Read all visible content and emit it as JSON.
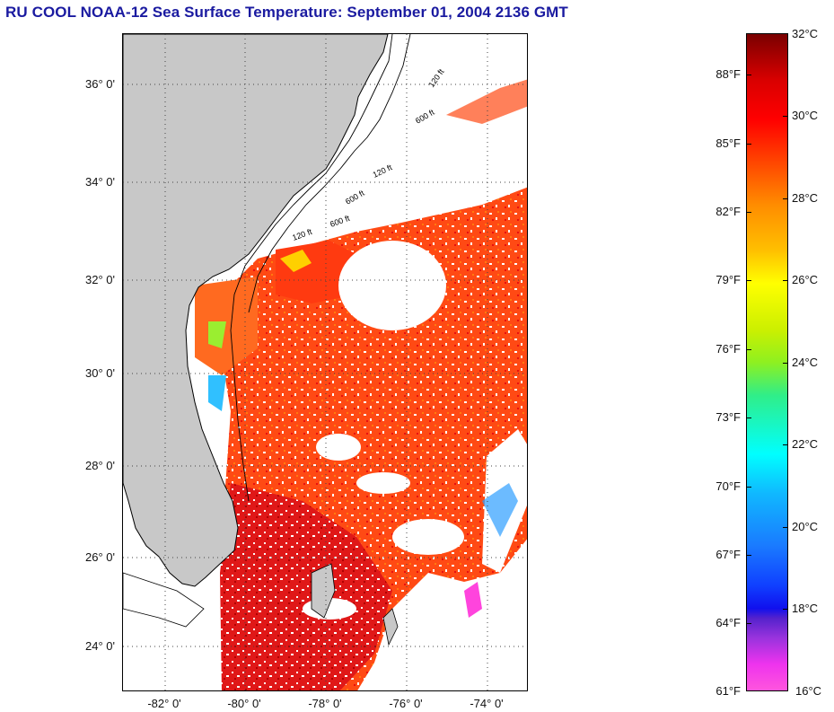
{
  "title": "RU COOL  NOAA-12  Sea Surface Temperature:  September 01, 2004 2136 GMT",
  "map": {
    "lat_labels": [
      "36° 0'",
      "34° 0'",
      "32° 0'",
      "30° 0'",
      "28° 0'",
      "26° 0'",
      "24° 0'"
    ],
    "lon_labels": [
      "-82° 0'",
      "-80° 0'",
      "-78° 0'",
      "-76° 0'",
      "-74° 0'"
    ],
    "contour_labels": [
      "120 ft",
      "600 ft",
      "120 ft",
      "600 ft",
      "120 ft",
      "600 ft"
    ],
    "colors": {
      "land": "#c8c8c8",
      "cloud": "#ffffff",
      "sst_warm": "#ff3a10",
      "sst_hot": "#e01010",
      "sst_mid": "#ff7a10"
    }
  },
  "colorbar": {
    "celsius_labels": [
      "32°C",
      "30°C",
      "28°C",
      "26°C",
      "24°C",
      "22°C",
      "20°C",
      "18°C",
      "16°C"
    ],
    "fahrenheit_labels": [
      "88°F",
      "85°F",
      "82°F",
      "79°F",
      "76°F",
      "73°F",
      "70°F",
      "67°F",
      "64°F",
      "61°F"
    ]
  }
}
